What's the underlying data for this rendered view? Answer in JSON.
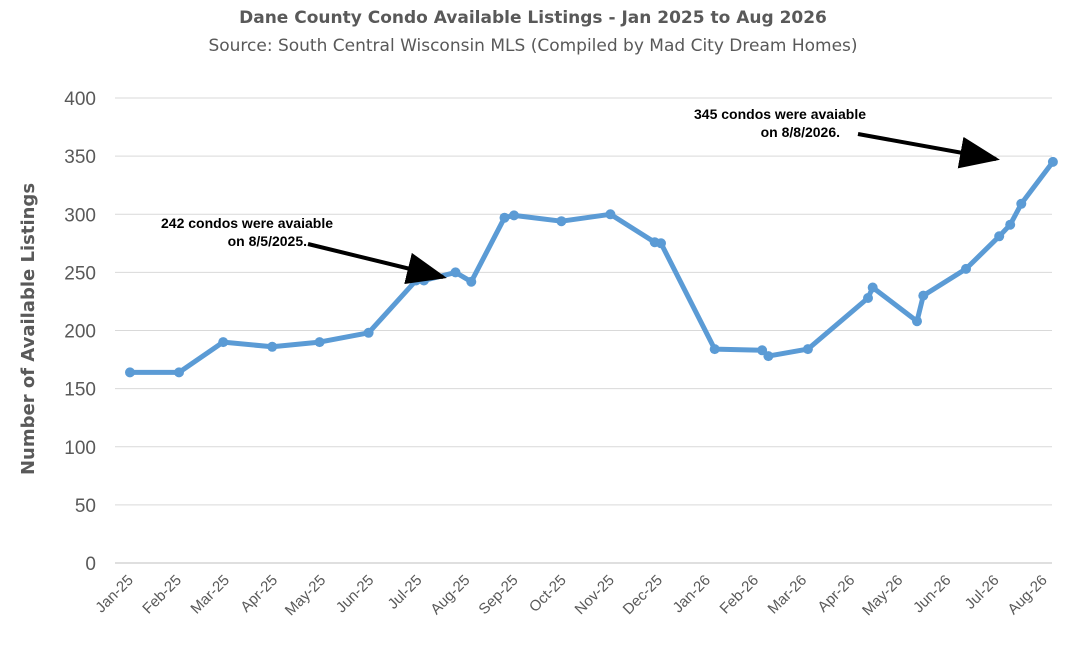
{
  "chart_data": {
    "type": "line",
    "title": "Dane County Condo Available Listings - Jan 2025 to Aug 2026",
    "subtitle": "Source: South Central Wisconsin MLS (Compiled by Mad City Dream Homes)",
    "xlabel": "",
    "ylabel": "Number of Available Listings",
    "ylim": [
      0,
      400
    ],
    "yticks": [
      0,
      50,
      100,
      150,
      200,
      250,
      300,
      350,
      400
    ],
    "grid": true,
    "legend": "none",
    "x_ticks": [
      "Jan-25",
      "Feb-25",
      "Mar-25",
      "Apr-25",
      "May-25",
      "Jun-25",
      "Jul-25",
      "Aug-25",
      "Sep-25",
      "Oct-25",
      "Nov-25",
      "Dec-25",
      "Jan-26",
      "Feb-26",
      "Mar-26",
      "Apr-26",
      "May-26",
      "Jun-26",
      "Jul-26",
      "Aug-26"
    ],
    "series": [
      {
        "color": "#5b9bd5",
        "points": [
          {
            "x": "2025-01-01",
            "y": 164
          },
          {
            "x": "2025-02-01",
            "y": 164
          },
          {
            "x": "2025-03-01",
            "y": 190
          },
          {
            "x": "2025-04-01",
            "y": 186
          },
          {
            "x": "2025-05-01",
            "y": 190
          },
          {
            "x": "2025-06-01",
            "y": 198
          },
          {
            "x": "2025-07-01",
            "y": 243
          },
          {
            "x": "2025-07-06",
            "y": 243
          },
          {
            "x": "2025-07-26",
            "y": 250
          },
          {
            "x": "2025-08-05",
            "y": 242
          },
          {
            "x": "2025-08-26",
            "y": 297
          },
          {
            "x": "2025-09-01",
            "y": 299
          },
          {
            "x": "2025-10-01",
            "y": 294
          },
          {
            "x": "2025-11-01",
            "y": 300
          },
          {
            "x": "2025-11-29",
            "y": 276
          },
          {
            "x": "2025-12-03",
            "y": 275
          },
          {
            "x": "2026-01-06",
            "y": 184
          },
          {
            "x": "2026-02-05",
            "y": 183
          },
          {
            "x": "2026-02-09",
            "y": 178
          },
          {
            "x": "2026-03-06",
            "y": 184
          },
          {
            "x": "2026-04-13",
            "y": 228
          },
          {
            "x": "2026-04-16",
            "y": 237
          },
          {
            "x": "2026-05-14",
            "y": 208
          },
          {
            "x": "2026-05-18",
            "y": 230
          },
          {
            "x": "2026-06-14",
            "y": 253
          },
          {
            "x": "2026-07-05",
            "y": 281
          },
          {
            "x": "2026-07-12",
            "y": 291
          },
          {
            "x": "2026-07-19",
            "y": 309
          },
          {
            "x": "2026-08-08",
            "y": 345
          }
        ]
      }
    ],
    "annotations": [
      {
        "line1": "242 condos were avaiable",
        "line2": "on 8/5/2025.",
        "target_x": "2025-08-05",
        "target_y": 242
      },
      {
        "line1": "345 condos were avaiable",
        "line2": "on 8/8/2026.",
        "target_x": "2026-08-08",
        "target_y": 345
      }
    ]
  }
}
